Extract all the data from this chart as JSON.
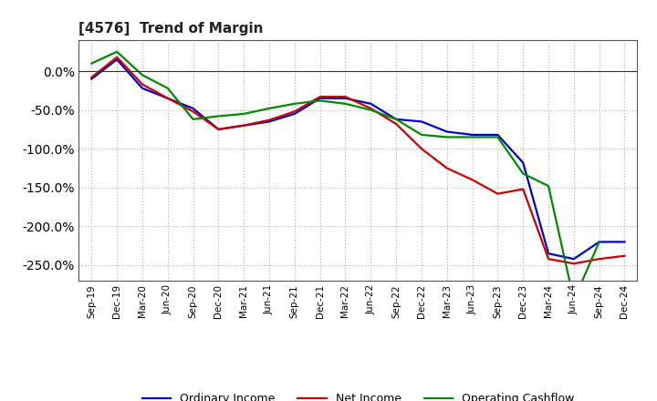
{
  "title": "[4576]  Trend of Margin",
  "x_labels": [
    "Sep-19",
    "Dec-19",
    "Mar-20",
    "Jun-20",
    "Sep-20",
    "Dec-20",
    "Mar-21",
    "Jun-21",
    "Sep-21",
    "Dec-21",
    "Mar-22",
    "Jun-22",
    "Sep-22",
    "Dec-22",
    "Mar-23",
    "Jun-23",
    "Sep-23",
    "Dec-23",
    "Mar-24",
    "Jun-24",
    "Sep-24",
    "Dec-24"
  ],
  "ordinary_income": [
    -10,
    15,
    -22,
    -35,
    -48,
    -75,
    -70,
    -65,
    -55,
    -35,
    -35,
    -42,
    -62,
    -65,
    -78,
    -82,
    -82,
    -118,
    -235,
    -242,
    -220,
    -220
  ],
  "net_income": [
    -8,
    18,
    -17,
    -35,
    -52,
    -75,
    -70,
    -63,
    -52,
    -33,
    -33,
    -48,
    -68,
    -100,
    -125,
    -140,
    -158,
    -152,
    -242,
    -248,
    -242,
    -238
  ],
  "operating_cashflow": [
    10,
    25,
    -5,
    -22,
    -62,
    -58,
    -55,
    -48,
    -42,
    -38,
    -42,
    -50,
    -62,
    -82,
    -85,
    -85,
    -85,
    -132,
    -148,
    -295,
    -220,
    null
  ],
  "ylim_min": -270,
  "ylim_max": 40,
  "yticks": [
    0,
    -50,
    -100,
    -150,
    -200,
    -250
  ],
  "colors": {
    "ordinary_income": "#0000cc",
    "net_income": "#cc0000",
    "operating_cashflow": "#008800"
  },
  "legend_labels": [
    "Ordinary Income",
    "Net Income",
    "Operating Cashflow"
  ],
  "background_color": "#ffffff",
  "grid_color": "#aaaaaa"
}
